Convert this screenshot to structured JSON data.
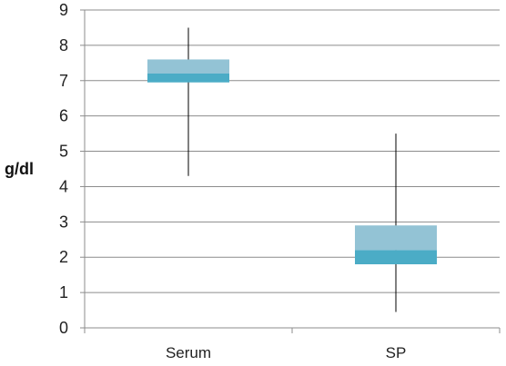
{
  "chart_data": {
    "type": "box",
    "title": "",
    "xlabel": "",
    "ylabel": "g/dl",
    "ylim": [
      0,
      9
    ],
    "yticks": [
      0,
      1,
      2,
      3,
      4,
      5,
      6,
      7,
      8,
      9
    ],
    "grid": true,
    "categories": [
      "Serum",
      "SP"
    ],
    "boxes": [
      {
        "category": "Serum",
        "min": 4.3,
        "q1": 6.95,
        "median": 7.2,
        "q3": 7.6,
        "max": 8.5
      },
      {
        "category": "SP",
        "min": 0.45,
        "q1": 1.8,
        "median": 2.2,
        "q3": 2.9,
        "max": 5.5
      }
    ],
    "colors": {
      "lower_box": "#4bacc6",
      "upper_box": "#93c3d5",
      "whisker": "#000000",
      "grid": "#8c8c8c",
      "axis": "#8c8c8c"
    }
  }
}
